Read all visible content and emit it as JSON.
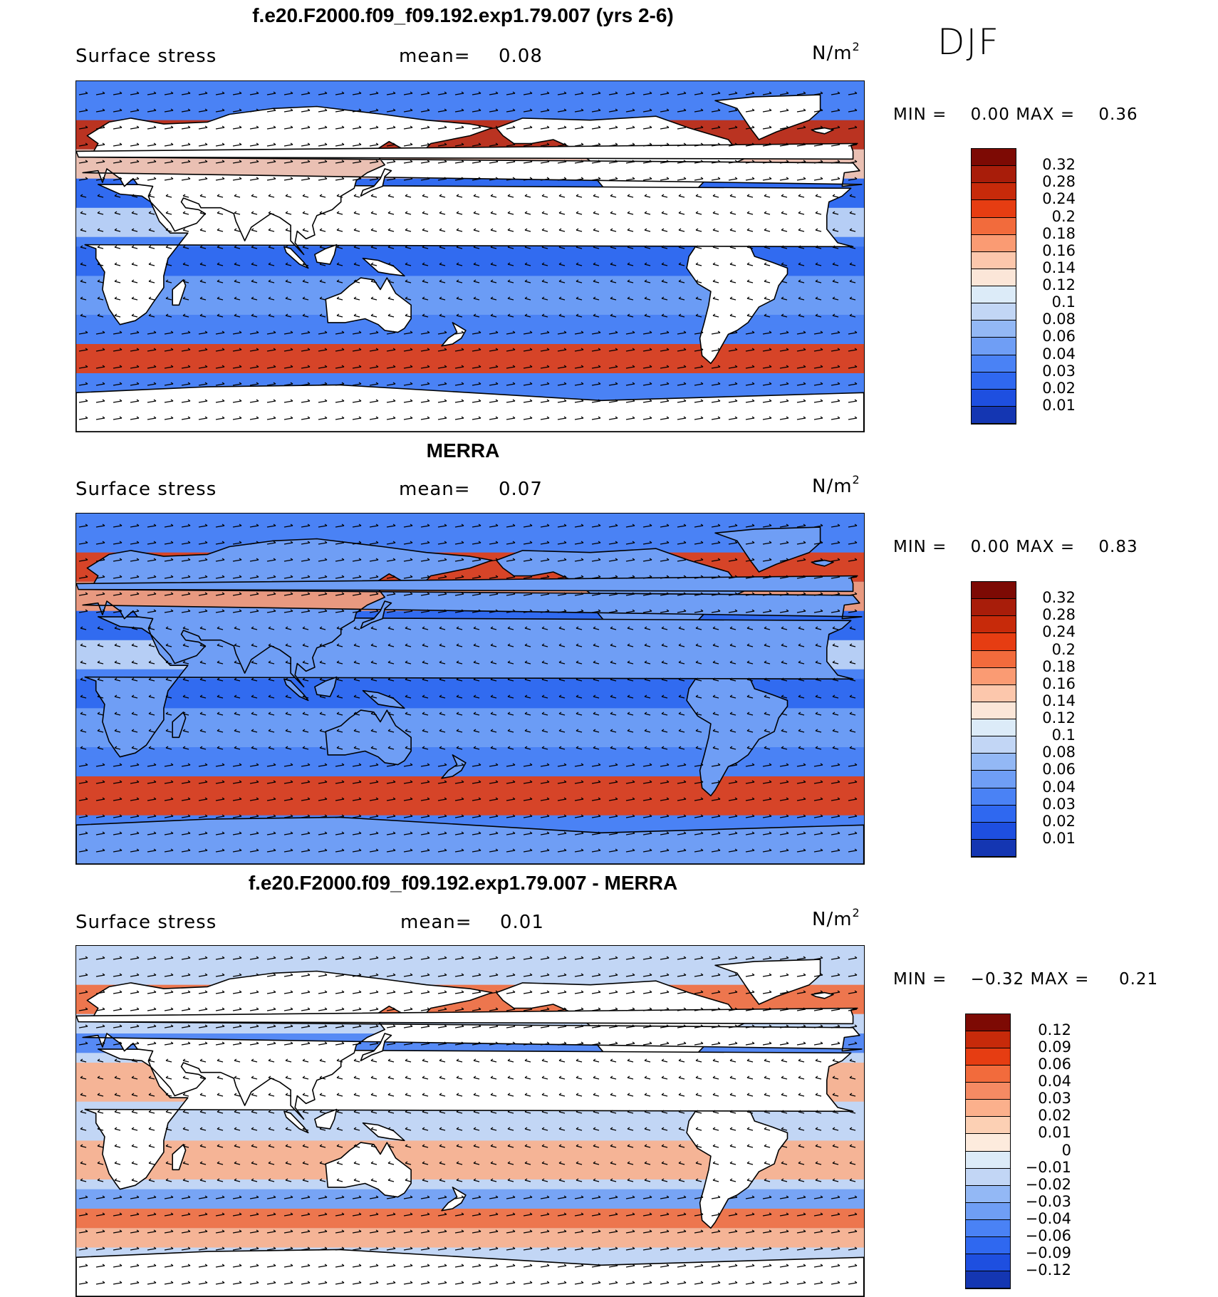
{
  "season": "DJF",
  "colors": {
    "pos_scale": [
      "#08216b",
      "#1436b2",
      "#1e4fe0",
      "#2f68f0",
      "#4a82f5",
      "#6f9ef5",
      "#93b8f5",
      "#c2d6f5",
      "#dcebf8",
      "#fbe6d8",
      "#fcc7ac",
      "#fa9b73",
      "#f26b3c",
      "#e63d12",
      "#c72a0a",
      "#a81d0a",
      "#7d0a04"
    ],
    "diff_scale": [
      "#08216b",
      "#1436b2",
      "#1e4fe0",
      "#2f68f0",
      "#4a82f5",
      "#6f9ef5",
      "#93b8f5",
      "#c2d6f5",
      "#dcebf8",
      "#fdebdd",
      "#fcd0b4",
      "#fbb08c",
      "#f58a63",
      "#f26b3c",
      "#e63d12",
      "#c72a0a",
      "#7d0a04"
    ]
  },
  "panels": [
    {
      "title": "f.e20.F2000.f09_f09.192.exp1.79.007 (yrs 2-6)",
      "left_label": "Surface stress",
      "mean_label": "mean=",
      "mean_value": "0.08",
      "units": "N/m",
      "units_sup": "2",
      "min_label": "MIN =",
      "min_value": "0.00",
      "max_label": "MAX =",
      "max_value": "0.36"
    },
    {
      "title": "MERRA",
      "left_label": "Surface stress",
      "mean_label": "mean=",
      "mean_value": "0.07",
      "units": "N/m",
      "units_sup": "2",
      "min_label": "MIN =",
      "min_value": "0.00",
      "max_label": "MAX =",
      "max_value": "0.83"
    },
    {
      "title": "f.e20.F2000.f09_f09.192.exp1.79.007 - MERRA",
      "left_label": "Surface stress",
      "mean_label": "mean=",
      "mean_value": "0.01",
      "units": "N/m",
      "units_sup": "2",
      "min_label": "MIN =",
      "min_value": "−0.32",
      "max_label": "MAX =",
      "max_value": "0.21"
    }
  ],
  "chart_data": [
    {
      "type": "heatmap",
      "title": "f.e20.F2000.f09_f09.192.exp1.79.007 (yrs 2-6)",
      "variable": "Surface stress",
      "units": "N/m^2",
      "mean": 0.08,
      "min": 0.0,
      "max": 0.36,
      "overlay": "wind stress vectors",
      "colorbar_levels": [
        "0.32",
        "0.28",
        "0.24",
        "0.2",
        "0.18",
        "0.16",
        "0.14",
        "0.12",
        "0.1",
        "0.08",
        "0.06",
        "0.04",
        "0.03",
        "0.02",
        "0.01"
      ],
      "bands": [
        {
          "lat": [
            -60,
            -45
          ],
          "level": 0.24
        },
        {
          "lat": [
            -45,
            -35
          ],
          "level": 0.04
        },
        {
          "lat": [
            -30,
            -10
          ],
          "level": 0.06
        },
        {
          "lat": [
            -10,
            5
          ],
          "level": 0.03
        },
        {
          "lat": [
            10,
            25
          ],
          "level": 0.1
        },
        {
          "lat": [
            25,
            40
          ],
          "level": 0.03
        },
        {
          "lat": [
            40,
            55
          ],
          "level": 0.16
        },
        {
          "lat": [
            55,
            70
          ],
          "level": 0.28
        }
      ]
    },
    {
      "type": "heatmap",
      "title": "MERRA",
      "variable": "Surface stress",
      "units": "N/m^2",
      "mean": 0.07,
      "min": 0.0,
      "max": 0.83,
      "overlay": "wind stress vectors",
      "colorbar_levels": [
        "0.32",
        "0.28",
        "0.24",
        "0.2",
        "0.18",
        "0.16",
        "0.14",
        "0.12",
        "0.1",
        "0.08",
        "0.06",
        "0.04",
        "0.03",
        "0.02",
        "0.01"
      ],
      "bands": [
        {
          "lat": [
            -65,
            -45
          ],
          "level": 0.24
        },
        {
          "lat": [
            -45,
            -35
          ],
          "level": 0.04
        },
        {
          "lat": [
            -30,
            -10
          ],
          "level": 0.06
        },
        {
          "lat": [
            -10,
            5
          ],
          "level": 0.03
        },
        {
          "lat": [
            10,
            25
          ],
          "level": 0.1
        },
        {
          "lat": [
            25,
            40
          ],
          "level": 0.03
        },
        {
          "lat": [
            40,
            55
          ],
          "level": 0.18
        },
        {
          "lat": [
            55,
            70
          ],
          "level": 0.24
        }
      ]
    },
    {
      "type": "heatmap",
      "title": "f.e20.F2000.f09_f09.192.exp1.79.007 - MERRA",
      "variable": "Surface stress",
      "units": "N/m^2",
      "mean": 0.01,
      "min": -0.32,
      "max": 0.21,
      "overlay": "wind stress difference vectors",
      "colorbar_levels": [
        "0.12",
        "0.09",
        "0.06",
        "0.04",
        "0.03",
        "0.02",
        "0.01",
        "0",
        "−0.01",
        "−0.02",
        "−0.03",
        "−0.04",
        "−0.06",
        "−0.09",
        "−0.12"
      ],
      "bands": [
        {
          "lat": [
            -65,
            -55
          ],
          "level": 0.03
        },
        {
          "lat": [
            -55,
            -45
          ],
          "level": 0.06
        },
        {
          "lat": [
            -45,
            -35
          ],
          "level": -0.03
        },
        {
          "lat": [
            -30,
            -10
          ],
          "level": 0.03
        },
        {
          "lat": [
            -10,
            5
          ],
          "level": -0.01
        },
        {
          "lat": [
            10,
            30
          ],
          "level": 0.03
        },
        {
          "lat": [
            35,
            45
          ],
          "level": -0.04
        },
        {
          "lat": [
            55,
            70
          ],
          "level": 0.06
        }
      ]
    }
  ]
}
